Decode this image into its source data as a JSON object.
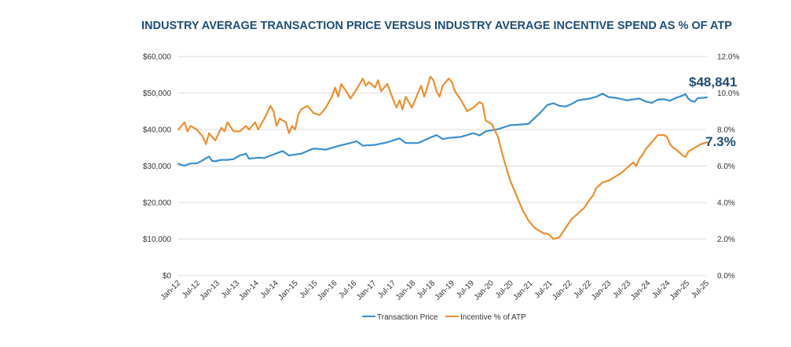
{
  "chart_data": {
    "type": "line",
    "title": "INDUSTRY AVERAGE TRANSACTION PRICE VERSUS INDUSTRY AVERAGE INCENTIVE SPEND AS % OF ATP",
    "y_left": {
      "ticks": [
        "$0",
        "$10,000",
        "$20,000",
        "$30,000",
        "$40,000",
        "$50,000",
        "$60,000"
      ],
      "range": [
        0,
        60000
      ]
    },
    "y_right": {
      "ticks": [
        "0.0%",
        "2.0%",
        "4.0%",
        "6.0%",
        "8.0%",
        "10.0%",
        "12.0%"
      ],
      "range": [
        0,
        12
      ]
    },
    "x_labels": [
      "Jan-12",
      "Jul-12",
      "Jan-13",
      "Jul-13",
      "Jan-14",
      "Jul-14",
      "Jan-15",
      "Jul-15",
      "Jan-16",
      "Jul-16",
      "Jan-17",
      "Jul-17",
      "Jan-18",
      "Jul-18",
      "Jan-19",
      "Jul-19",
      "Jan-20",
      "Jul-20",
      "Jan-21",
      "Jul-21",
      "Jan-22",
      "Jul-22",
      "Jan-23",
      "Jul-23",
      "Jan-24",
      "Jul-24",
      "Jan-25",
      "Jul-25"
    ],
    "series": [
      {
        "name": "Transaction Price",
        "axis": "left",
        "color": "#3a8fd1",
        "anchors": [
          [
            0,
            30600
          ],
          [
            2,
            30100
          ],
          [
            4,
            30700
          ],
          [
            6,
            30700
          ],
          [
            8,
            31600
          ],
          [
            10,
            32600
          ],
          [
            11,
            31400
          ],
          [
            12,
            31300
          ],
          [
            14,
            31700
          ],
          [
            16,
            31700
          ],
          [
            18,
            31900
          ],
          [
            20,
            32900
          ],
          [
            22,
            33400
          ],
          [
            23,
            32000
          ],
          [
            26,
            32300
          ],
          [
            28,
            32200
          ],
          [
            30,
            32900
          ],
          [
            34,
            34100
          ],
          [
            36,
            32900
          ],
          [
            40,
            33400
          ],
          [
            44,
            34800
          ],
          [
            48,
            34500
          ],
          [
            52,
            35500
          ],
          [
            56,
            36300
          ],
          [
            58,
            36800
          ],
          [
            60,
            35600
          ],
          [
            64,
            35800
          ],
          [
            68,
            36500
          ],
          [
            72,
            37600
          ],
          [
            74,
            36300
          ],
          [
            78,
            36300
          ],
          [
            82,
            37800
          ],
          [
            84,
            38500
          ],
          [
            86,
            37400
          ],
          [
            88,
            37700
          ],
          [
            92,
            38000
          ],
          [
            96,
            39000
          ],
          [
            98,
            38400
          ],
          [
            100,
            39500
          ],
          [
            104,
            40100
          ],
          [
            108,
            41200
          ],
          [
            112,
            41400
          ],
          [
            114,
            41600
          ],
          [
            116,
            43200
          ],
          [
            118,
            44800
          ],
          [
            120,
            46700
          ],
          [
            122,
            47200
          ],
          [
            124,
            46500
          ],
          [
            126,
            46300
          ],
          [
            128,
            47000
          ],
          [
            130,
            48000
          ],
          [
            134,
            48500
          ],
          [
            136,
            49000
          ],
          [
            138,
            49800
          ],
          [
            140,
            48900
          ],
          [
            142,
            48700
          ],
          [
            144,
            48400
          ],
          [
            146,
            48000
          ],
          [
            150,
            48500
          ],
          [
            152,
            47700
          ],
          [
            154,
            47300
          ],
          [
            156,
            48200
          ],
          [
            158,
            48300
          ],
          [
            160,
            47900
          ],
          [
            162,
            48700
          ],
          [
            164,
            49300
          ],
          [
            165,
            49700
          ],
          [
            166,
            48400
          ],
          [
            167,
            47800
          ],
          [
            168,
            47600
          ],
          [
            169,
            48600
          ],
          [
            171,
            48700
          ],
          [
            172,
            48841
          ]
        ]
      },
      {
        "name": "Incentive % of ATP",
        "axis": "right",
        "color": "#ef8f2e",
        "anchors": [
          [
            0,
            8.0
          ],
          [
            2,
            8.4
          ],
          [
            3,
            7.9
          ],
          [
            4,
            8.2
          ],
          [
            6,
            8.0
          ],
          [
            8,
            7.6
          ],
          [
            9,
            7.2
          ],
          [
            10,
            7.8
          ],
          [
            12,
            7.4
          ],
          [
            14,
            8.1
          ],
          [
            15,
            7.9
          ],
          [
            16,
            8.4
          ],
          [
            18,
            7.9
          ],
          [
            20,
            7.9
          ],
          [
            22,
            8.2
          ],
          [
            23,
            8.0
          ],
          [
            25,
            8.4
          ],
          [
            26,
            8.0
          ],
          [
            28,
            8.6
          ],
          [
            30,
            9.3
          ],
          [
            31,
            9.0
          ],
          [
            32,
            8.2
          ],
          [
            33,
            8.6
          ],
          [
            35,
            8.4
          ],
          [
            36,
            7.8
          ],
          [
            37,
            8.2
          ],
          [
            38,
            8.0
          ],
          [
            39,
            8.8
          ],
          [
            40,
            9.1
          ],
          [
            42,
            9.3
          ],
          [
            44,
            8.9
          ],
          [
            46,
            8.8
          ],
          [
            48,
            9.2
          ],
          [
            50,
            9.8
          ],
          [
            51,
            10.3
          ],
          [
            52,
            9.8
          ],
          [
            53,
            10.5
          ],
          [
            55,
            10.0
          ],
          [
            56,
            9.7
          ],
          [
            58,
            10.2
          ],
          [
            60,
            10.8
          ],
          [
            61,
            10.4
          ],
          [
            62,
            10.6
          ],
          [
            64,
            10.3
          ],
          [
            65,
            10.7
          ],
          [
            66,
            10.1
          ],
          [
            68,
            10.5
          ],
          [
            70,
            9.6
          ],
          [
            71,
            9.2
          ],
          [
            72,
            9.6
          ],
          [
            73,
            9.1
          ],
          [
            74,
            9.8
          ],
          [
            76,
            9.2
          ],
          [
            78,
            10.0
          ],
          [
            79,
            10.4
          ],
          [
            80,
            9.8
          ],
          [
            81,
            10.3
          ],
          [
            82,
            10.9
          ],
          [
            83,
            10.7
          ],
          [
            84,
            10.1
          ],
          [
            85,
            9.8
          ],
          [
            86,
            10.4
          ],
          [
            88,
            10.8
          ],
          [
            89,
            10.6
          ],
          [
            90,
            10.1
          ],
          [
            92,
            9.6
          ],
          [
            94,
            9.0
          ],
          [
            96,
            9.2
          ],
          [
            98,
            9.5
          ],
          [
            99,
            9.4
          ],
          [
            100,
            8.5
          ],
          [
            102,
            8.3
          ],
          [
            104,
            7.6
          ],
          [
            106,
            6.3
          ],
          [
            108,
            5.2
          ],
          [
            110,
            4.4
          ],
          [
            112,
            3.6
          ],
          [
            114,
            3.0
          ],
          [
            116,
            2.6
          ],
          [
            118,
            2.4
          ],
          [
            119,
            2.3
          ],
          [
            120,
            2.3
          ],
          [
            121,
            2.2
          ],
          [
            122,
            2.0
          ],
          [
            124,
            2.1
          ],
          [
            126,
            2.6
          ],
          [
            128,
            3.1
          ],
          [
            130,
            3.4
          ],
          [
            132,
            3.7
          ],
          [
            134,
            4.2
          ],
          [
            135,
            4.4
          ],
          [
            136,
            4.8
          ],
          [
            138,
            5.1
          ],
          [
            140,
            5.2
          ],
          [
            142,
            5.4
          ],
          [
            144,
            5.6
          ],
          [
            146,
            5.9
          ],
          [
            148,
            6.2
          ],
          [
            149,
            6.0
          ],
          [
            150,
            6.4
          ],
          [
            151,
            6.6
          ],
          [
            152,
            6.9
          ],
          [
            154,
            7.3
          ],
          [
            156,
            7.7
          ],
          [
            158,
            7.7
          ],
          [
            159,
            7.6
          ],
          [
            160,
            7.2
          ],
          [
            161,
            7.0
          ],
          [
            162,
            6.9
          ],
          [
            164,
            6.6
          ],
          [
            165,
            6.5
          ],
          [
            166,
            6.8
          ],
          [
            167,
            6.9
          ],
          [
            168,
            7.0
          ],
          [
            170,
            7.2
          ],
          [
            172,
            7.3
          ]
        ]
      }
    ],
    "callouts": {
      "price": "$48,841",
      "incentive": "7.3%"
    },
    "legend": [
      "Transaction Price",
      "Incentive % of ATP"
    ],
    "grid": true,
    "legend_position": "bottom"
  }
}
